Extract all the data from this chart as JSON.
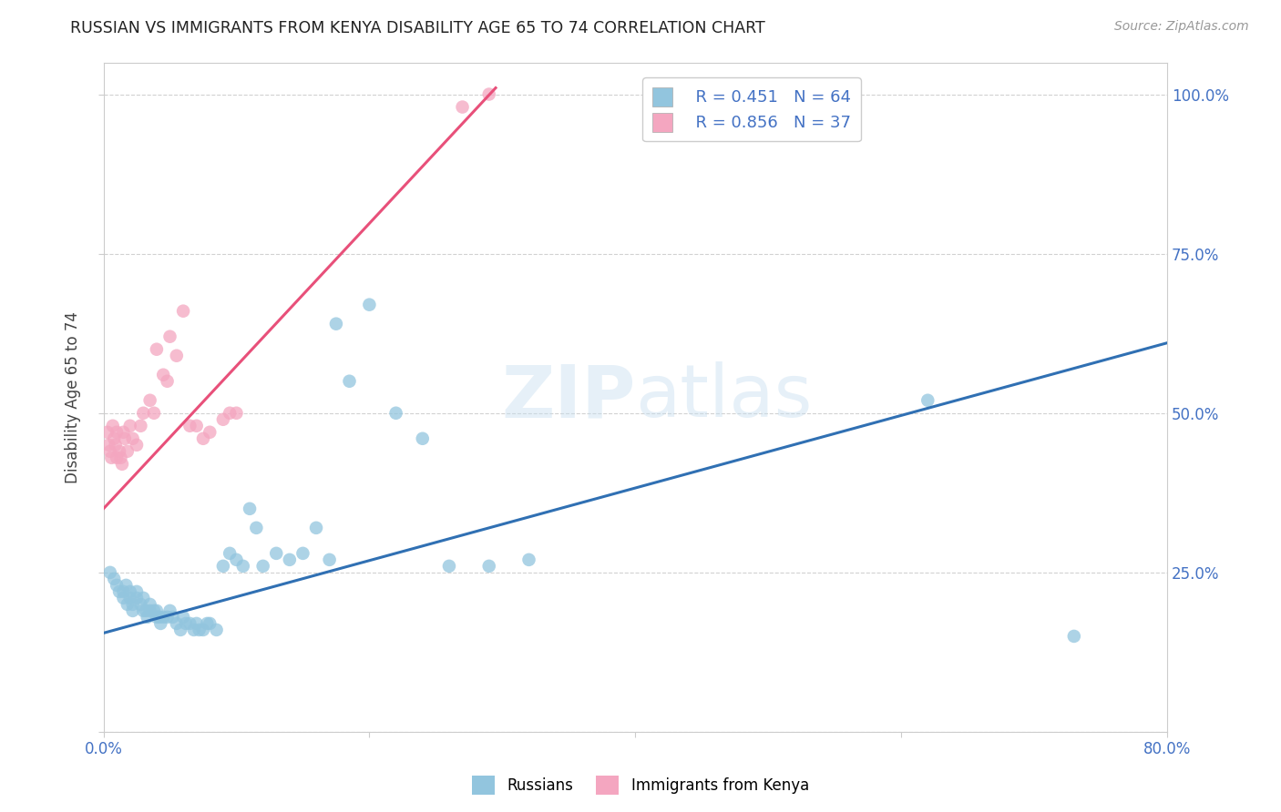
{
  "title": "RUSSIAN VS IMMIGRANTS FROM KENYA DISABILITY AGE 65 TO 74 CORRELATION CHART",
  "source": "Source: ZipAtlas.com",
  "ylabel": "Disability Age 65 to 74",
  "xlim": [
    0.0,
    0.8
  ],
  "ylim": [
    0.0,
    1.05
  ],
  "yticks": [
    0.0,
    0.25,
    0.5,
    0.75,
    1.0
  ],
  "ytick_labels": [
    "",
    "25.0%",
    "50.0%",
    "75.0%",
    "100.0%"
  ],
  "xticks": [
    0.0,
    0.2,
    0.4,
    0.6,
    0.8
  ],
  "xtick_labels": [
    "0.0%",
    "",
    "",
    "",
    "80.0%"
  ],
  "watermark": "ZIPatlas",
  "legend_russian_R": "R = 0.451",
  "legend_russian_N": "N = 64",
  "legend_kenya_R": "R = 0.856",
  "legend_kenya_N": "N = 37",
  "russian_color": "#92c5de",
  "kenya_color": "#f4a6c0",
  "russian_line_color": "#3070b3",
  "kenya_line_color": "#e8507a",
  "background_color": "#ffffff",
  "russian_scatter": [
    [
      0.005,
      0.25
    ],
    [
      0.008,
      0.24
    ],
    [
      0.01,
      0.23
    ],
    [
      0.012,
      0.22
    ],
    [
      0.015,
      0.22
    ],
    [
      0.015,
      0.21
    ],
    [
      0.017,
      0.23
    ],
    [
      0.018,
      0.2
    ],
    [
      0.02,
      0.22
    ],
    [
      0.02,
      0.21
    ],
    [
      0.022,
      0.2
    ],
    [
      0.022,
      0.19
    ],
    [
      0.025,
      0.21
    ],
    [
      0.025,
      0.22
    ],
    [
      0.028,
      0.2
    ],
    [
      0.03,
      0.19
    ],
    [
      0.03,
      0.21
    ],
    [
      0.032,
      0.19
    ],
    [
      0.033,
      0.18
    ],
    [
      0.035,
      0.2
    ],
    [
      0.035,
      0.19
    ],
    [
      0.038,
      0.19
    ],
    [
      0.04,
      0.18
    ],
    [
      0.04,
      0.19
    ],
    [
      0.042,
      0.18
    ],
    [
      0.043,
      0.17
    ],
    [
      0.045,
      0.18
    ],
    [
      0.048,
      0.18
    ],
    [
      0.05,
      0.19
    ],
    [
      0.052,
      0.18
    ],
    [
      0.055,
      0.17
    ],
    [
      0.058,
      0.16
    ],
    [
      0.06,
      0.18
    ],
    [
      0.062,
      0.17
    ],
    [
      0.065,
      0.17
    ],
    [
      0.068,
      0.16
    ],
    [
      0.07,
      0.17
    ],
    [
      0.072,
      0.16
    ],
    [
      0.075,
      0.16
    ],
    [
      0.078,
      0.17
    ],
    [
      0.08,
      0.17
    ],
    [
      0.085,
      0.16
    ],
    [
      0.09,
      0.26
    ],
    [
      0.095,
      0.28
    ],
    [
      0.1,
      0.27
    ],
    [
      0.105,
      0.26
    ],
    [
      0.11,
      0.35
    ],
    [
      0.115,
      0.32
    ],
    [
      0.12,
      0.26
    ],
    [
      0.13,
      0.28
    ],
    [
      0.14,
      0.27
    ],
    [
      0.15,
      0.28
    ],
    [
      0.16,
      0.32
    ],
    [
      0.17,
      0.27
    ],
    [
      0.175,
      0.64
    ],
    [
      0.185,
      0.55
    ],
    [
      0.2,
      0.67
    ],
    [
      0.22,
      0.5
    ],
    [
      0.24,
      0.46
    ],
    [
      0.26,
      0.26
    ],
    [
      0.29,
      0.26
    ],
    [
      0.32,
      0.27
    ],
    [
      0.62,
      0.52
    ],
    [
      0.73,
      0.15
    ]
  ],
  "kenya_scatter": [
    [
      0.003,
      0.47
    ],
    [
      0.004,
      0.45
    ],
    [
      0.005,
      0.44
    ],
    [
      0.006,
      0.43
    ],
    [
      0.007,
      0.48
    ],
    [
      0.008,
      0.46
    ],
    [
      0.009,
      0.45
    ],
    [
      0.01,
      0.47
    ],
    [
      0.01,
      0.43
    ],
    [
      0.012,
      0.44
    ],
    [
      0.013,
      0.43
    ],
    [
      0.014,
      0.42
    ],
    [
      0.015,
      0.47
    ],
    [
      0.016,
      0.46
    ],
    [
      0.018,
      0.44
    ],
    [
      0.02,
      0.48
    ],
    [
      0.022,
      0.46
    ],
    [
      0.025,
      0.45
    ],
    [
      0.028,
      0.48
    ],
    [
      0.03,
      0.5
    ],
    [
      0.035,
      0.52
    ],
    [
      0.038,
      0.5
    ],
    [
      0.04,
      0.6
    ],
    [
      0.045,
      0.56
    ],
    [
      0.048,
      0.55
    ],
    [
      0.05,
      0.62
    ],
    [
      0.055,
      0.59
    ],
    [
      0.06,
      0.66
    ],
    [
      0.065,
      0.48
    ],
    [
      0.07,
      0.48
    ],
    [
      0.075,
      0.46
    ],
    [
      0.08,
      0.47
    ],
    [
      0.09,
      0.49
    ],
    [
      0.095,
      0.5
    ],
    [
      0.1,
      0.5
    ],
    [
      0.27,
      0.98
    ],
    [
      0.29,
      1.0
    ]
  ],
  "russian_trendline": [
    [
      0.0,
      0.155
    ],
    [
      0.8,
      0.61
    ]
  ],
  "kenya_trendline": [
    [
      0.0,
      0.35
    ],
    [
      0.295,
      1.01
    ]
  ]
}
